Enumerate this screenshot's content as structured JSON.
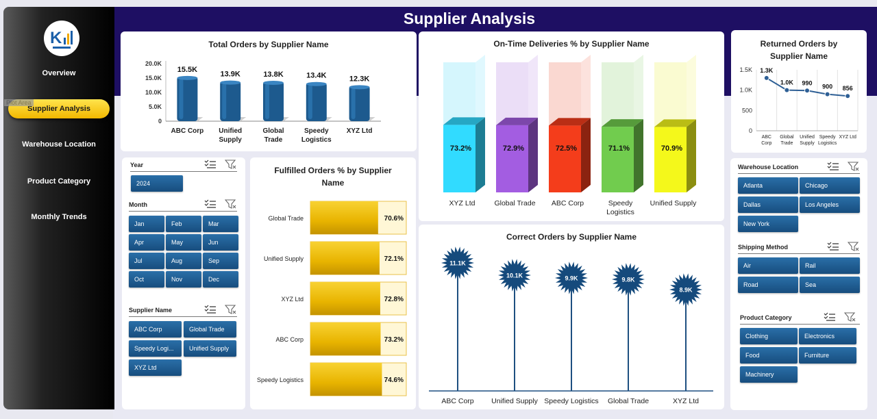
{
  "page": {
    "title": "Supplier Analysis",
    "plot_area_label": "Plot Area"
  },
  "sidebar": {
    "items": [
      {
        "label": "Overview",
        "active": false
      },
      {
        "label": "Supplier Analysis",
        "active": true
      },
      {
        "label": "Warehouse Location",
        "active": false
      },
      {
        "label": "Product Category",
        "active": false
      },
      {
        "label": "Monthly Trends",
        "active": false
      }
    ]
  },
  "charts": {
    "total_orders": {
      "type": "bar",
      "title": "Total Orders by Supplier Name",
      "categories": [
        "ABC Corp",
        "Unified Supply",
        "Global Trade",
        "Speedy Logistics",
        "XYZ Ltd"
      ],
      "values": [
        15500,
        13900,
        13800,
        13400,
        12300
      ],
      "data_labels": [
        "15.5K",
        "13.9K",
        "13.8K",
        "13.4K",
        "12.3K"
      ],
      "yticks": [
        "0",
        "5.0K",
        "10.0K",
        "15.0K",
        "20.0K"
      ],
      "ylim": [
        0,
        20000
      ]
    },
    "on_time": {
      "type": "bar",
      "title": "On-Time Deliveries % by Supplier Name",
      "categories": [
        "XYZ Ltd",
        "Global Trade",
        "ABC Corp",
        "Speedy Logistics",
        "Unified Supply"
      ],
      "values": [
        73.2,
        72.9,
        72.5,
        71.1,
        70.9
      ],
      "data_labels": [
        "73.2%",
        "72.9%",
        "72.5%",
        "71.1%",
        "70.9%"
      ],
      "colors": [
        "#2fd1f5",
        "#9b59d6",
        "#e83a1a",
        "#6cc24a",
        "#e8ec1a"
      ]
    },
    "returned": {
      "type": "line",
      "title": "Returned Orders by Supplier Name",
      "categories": [
        "ABC Corp",
        "Global Trade",
        "Unified Supply",
        "Speedy Logistics",
        "XYZ Ltd"
      ],
      "values": [
        1300,
        1000,
        990,
        900,
        856
      ],
      "data_labels": [
        "1.3K",
        "1.0K",
        "990",
        "900",
        "856"
      ],
      "yticks": [
        "0",
        "500",
        "1.0K",
        "1.5K"
      ],
      "ylim": [
        0,
        1500
      ]
    },
    "fulfilled": {
      "type": "bar",
      "title": "Fulfilled Orders % by Supplier Name",
      "categories": [
        "Global Trade",
        "Unified Supply",
        "XYZ Ltd",
        "ABC Corp",
        "Speedy Logistics"
      ],
      "values": [
        70.6,
        72.1,
        72.8,
        73.2,
        74.6
      ],
      "data_labels": [
        "70.6%",
        "72.1%",
        "72.8%",
        "73.2%",
        "74.6%"
      ]
    },
    "correct": {
      "type": "scatter",
      "title": "Correct Orders by Supplier Name",
      "categories": [
        "ABC Corp",
        "Unified Supply",
        "Speedy Logistics",
        "Global Trade",
        "XYZ Ltd"
      ],
      "values": [
        11100,
        10100,
        9900,
        9800,
        8900
      ],
      "data_labels": [
        "11.1K",
        "10.1K",
        "9.9K",
        "9.8K",
        "8.9K"
      ]
    }
  },
  "slicers": {
    "year": {
      "header": "Year",
      "items": [
        "2024"
      ]
    },
    "month": {
      "header": "Month",
      "items": [
        "Jan",
        "Feb",
        "Mar",
        "Apr",
        "May",
        "Jun",
        "Jul",
        "Aug",
        "Sep",
        "Oct",
        "Nov",
        "Dec"
      ]
    },
    "supplier": {
      "header": "Supplier Name",
      "items": [
        "ABC Corp",
        "Global Trade",
        "Speedy Logi...",
        "Unified Supply",
        "XYZ Ltd"
      ]
    },
    "warehouse": {
      "header": "Warehouse Location",
      "items": [
        "Atlanta",
        "Chicago",
        "Dallas",
        "Los Angeles",
        "New York"
      ]
    },
    "shipping": {
      "header": "Shipping Method",
      "items": [
        "Air",
        "Rail",
        "Road",
        "Sea"
      ]
    },
    "category": {
      "header": "Product Category",
      "items": [
        "Clothing",
        "Electronics",
        "Food",
        "Furniture",
        "Machinery"
      ]
    }
  },
  "icons": {
    "multiselect": "multi-select-icon",
    "clear_filter": "clear-filter-icon",
    "logo": "logo-icon"
  }
}
